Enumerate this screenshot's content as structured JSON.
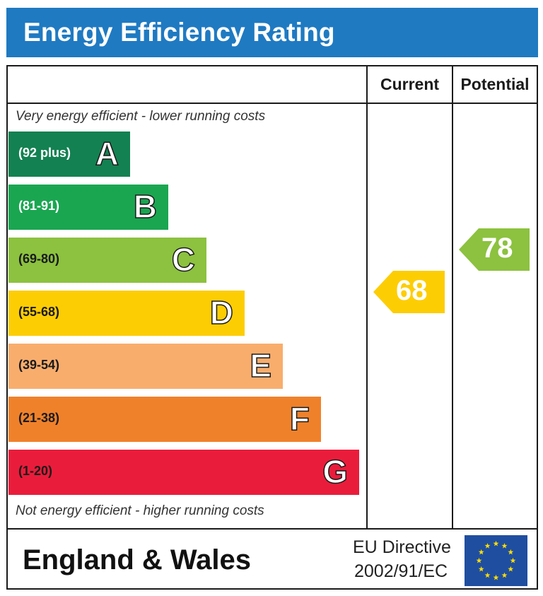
{
  "header": {
    "title": "Energy Efficiency Rating"
  },
  "columns": {
    "current": "Current",
    "potential": "Potential"
  },
  "notes": {
    "top": "Very energy efficient - lower running costs",
    "bottom": "Not energy efficient - higher running costs"
  },
  "chart_data": {
    "type": "bar",
    "categories": [
      "A",
      "B",
      "C",
      "D",
      "E",
      "F",
      "G"
    ],
    "bands": [
      {
        "letter": "A",
        "range": "(92 plus)",
        "min": 92,
        "max": 100,
        "color": "#138151",
        "range_color": "#ffffff"
      },
      {
        "letter": "B",
        "range": "(81-91)",
        "min": 81,
        "max": 91,
        "color": "#1aa651",
        "range_color": "#ffffff"
      },
      {
        "letter": "C",
        "range": "(69-80)",
        "min": 69,
        "max": 80,
        "color": "#8cc23f",
        "range_color": "#1a1a1a"
      },
      {
        "letter": "D",
        "range": "(55-68)",
        "min": 55,
        "max": 68,
        "color": "#fdcd04",
        "range_color": "#1a1a1a"
      },
      {
        "letter": "E",
        "range": "(39-54)",
        "min": 39,
        "max": 54,
        "color": "#f8ad6d",
        "range_color": "#1a1a1a"
      },
      {
        "letter": "F",
        "range": "(21-38)",
        "min": 21,
        "max": 38,
        "color": "#f0812b",
        "range_color": "#1a1a1a"
      },
      {
        "letter": "G",
        "range": "(1-20)",
        "min": 1,
        "max": 20,
        "color": "#ea1c3b",
        "range_color": "#1a1a1a"
      }
    ],
    "current": {
      "value": 68,
      "band": "D",
      "color": "#fdcd04"
    },
    "potential": {
      "value": 78,
      "band": "C",
      "color": "#8cc23f"
    }
  },
  "footer": {
    "region": "England & Wales",
    "directive_line1": "EU Directive",
    "directive_line2": "2002/91/EC",
    "flag_color": "#1f4ea0",
    "star_color": "#ffdd00"
  }
}
